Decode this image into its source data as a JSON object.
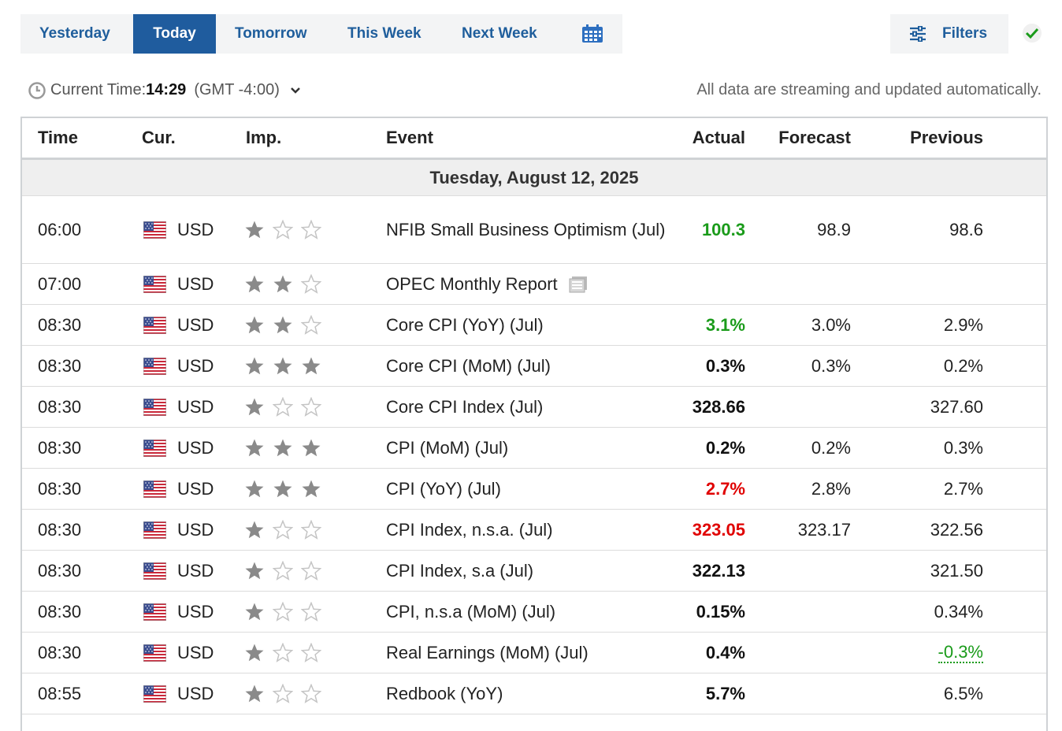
{
  "tabs": [
    {
      "label": "Yesterday",
      "active": false
    },
    {
      "label": "Today",
      "active": true
    },
    {
      "label": "Tomorrow",
      "active": false
    },
    {
      "label": "This Week",
      "active": false
    },
    {
      "label": "Next Week",
      "active": false
    }
  ],
  "calendar_icon": "calendar-icon",
  "filters": {
    "label": "Filters",
    "icon": "sliders-icon"
  },
  "confirm_icon": "checkmark-icon",
  "info": {
    "current_time_label": "Current Time:",
    "current_time": "14:29",
    "timezone": "(GMT -4:00)",
    "streaming_note": "All data are streaming and updated automatically."
  },
  "colors": {
    "accent": "#1f5c9e",
    "positive": "#1a9b1a",
    "negative": "#e00000"
  },
  "table": {
    "headers": {
      "time": "Time",
      "cur": "Cur.",
      "imp": "Imp.",
      "event": "Event",
      "actual": "Actual",
      "forecast": "Forecast",
      "previous": "Previous"
    },
    "date": "Tuesday, August 12, 2025",
    "rows": [
      {
        "time": "06:00",
        "cur": "USD",
        "imp": 1,
        "event": "NFIB Small Business Optimism (Jul)",
        "actual": "100.3",
        "actual_color": "green",
        "forecast": "98.9",
        "previous": "98.6"
      },
      {
        "time": "07:00",
        "cur": "USD",
        "imp": 2,
        "event": "OPEC Monthly Report",
        "actual": "",
        "actual_color": "black",
        "forecast": "",
        "previous": "",
        "report": true
      },
      {
        "time": "08:30",
        "cur": "USD",
        "imp": 2,
        "event": "Core CPI (YoY) (Jul)",
        "actual": "3.1%",
        "actual_color": "green",
        "forecast": "3.0%",
        "previous": "2.9%"
      },
      {
        "time": "08:30",
        "cur": "USD",
        "imp": 3,
        "event": "Core CPI (MoM) (Jul)",
        "actual": "0.3%",
        "actual_color": "black",
        "forecast": "0.3%",
        "previous": "0.2%"
      },
      {
        "time": "08:30",
        "cur": "USD",
        "imp": 1,
        "event": "Core CPI Index (Jul)",
        "actual": "328.66",
        "actual_color": "black",
        "forecast": "",
        "previous": "327.60"
      },
      {
        "time": "08:30",
        "cur": "USD",
        "imp": 3,
        "event": "CPI (MoM) (Jul)",
        "actual": "0.2%",
        "actual_color": "black",
        "forecast": "0.2%",
        "previous": "0.3%"
      },
      {
        "time": "08:30",
        "cur": "USD",
        "imp": 3,
        "event": "CPI (YoY) (Jul)",
        "actual": "2.7%",
        "actual_color": "red",
        "forecast": "2.8%",
        "previous": "2.7%"
      },
      {
        "time": "08:30",
        "cur": "USD",
        "imp": 1,
        "event": "CPI Index, n.s.a. (Jul)",
        "actual": "323.05",
        "actual_color": "red",
        "forecast": "323.17",
        "previous": "322.56"
      },
      {
        "time": "08:30",
        "cur": "USD",
        "imp": 1,
        "event": "CPI Index, s.a (Jul)",
        "actual": "322.13",
        "actual_color": "black",
        "forecast": "",
        "previous": "321.50"
      },
      {
        "time": "08:30",
        "cur": "USD",
        "imp": 1,
        "event": "CPI, n.s.a (MoM) (Jul)",
        "actual": "0.15%",
        "actual_color": "black",
        "forecast": "",
        "previous": "0.34%"
      },
      {
        "time": "08:30",
        "cur": "USD",
        "imp": 1,
        "event": "Real Earnings (MoM) (Jul)",
        "actual": "0.4%",
        "actual_color": "black",
        "forecast": "",
        "previous": "-0.3%",
        "previous_revised": true
      },
      {
        "time": "08:55",
        "cur": "USD",
        "imp": 1,
        "event": "Redbook (YoY)",
        "actual": "5.7%",
        "actual_color": "black",
        "forecast": "",
        "previous": "6.5%"
      }
    ]
  }
}
